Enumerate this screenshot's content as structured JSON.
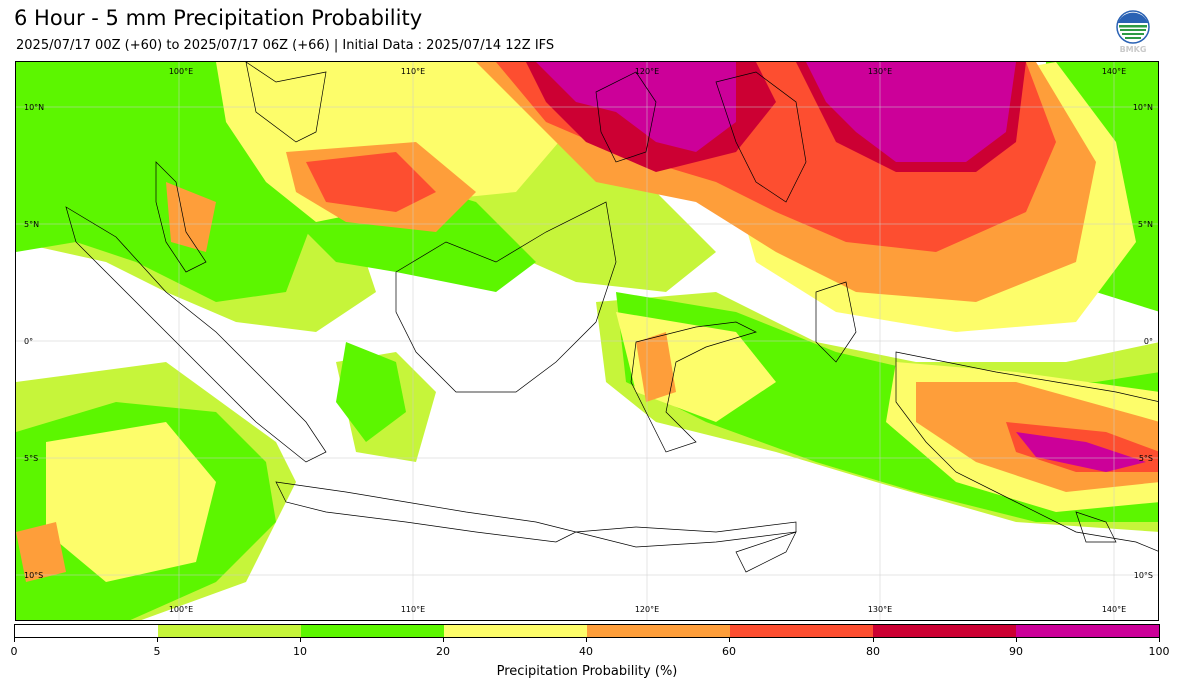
{
  "title": "6 Hour - 5 mm Precipitation Probability",
  "subtitle": "2025/07/17 00Z (+60) to 2025/07/17 06Z (+66) | Initial Data : 2025/07/14 12Z IFS",
  "logo_text": "BMKG",
  "map": {
    "lon_labels_top": [
      "100°E",
      "110°E",
      "120°E",
      "130°E",
      "140°E"
    ],
    "lon_labels_bottom": [
      "100°E",
      "110°E",
      "120°E",
      "130°E",
      "140°E"
    ],
    "lat_labels_left": [
      "10°N",
      "5°N",
      "0°",
      "5°S",
      "10°S"
    ],
    "lat_labels_right": [
      "10°N",
      "5°N",
      "0°",
      "5°S",
      "10°S"
    ]
  },
  "colorbar": {
    "title": "Precipitation Probability (%)",
    "ticks": [
      "0",
      "5",
      "10",
      "20",
      "40",
      "60",
      "80",
      "90",
      "100"
    ],
    "colors": [
      "#ffffff",
      "#c6f53a",
      "#5cf600",
      "#fdfd6a",
      "#fe9e3a",
      "#fd4e30",
      "#cc0033",
      "#cc0099"
    ]
  },
  "colors": {
    "white": "#ffffff",
    "light_green": "#c6f53a",
    "green": "#5cf600",
    "yellow": "#fdfd6a",
    "orange": "#fe9e3a",
    "red": "#fd4e30",
    "crimson": "#cc0033",
    "magenta": "#cc0099"
  }
}
